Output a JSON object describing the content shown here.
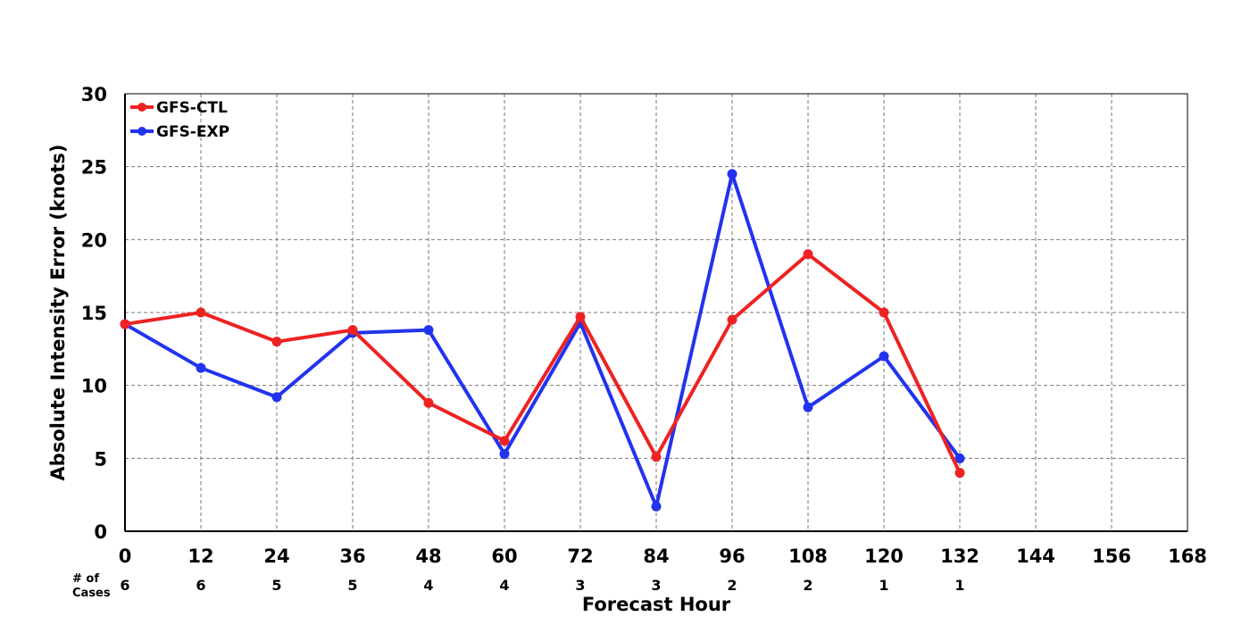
{
  "chart_data": {
    "type": "line",
    "title": "",
    "xlabel": "Forecast Hour",
    "ylabel": "Absolute Intensity Error (knots)",
    "x": [
      0,
      12,
      24,
      36,
      48,
      60,
      72,
      84,
      96,
      108,
      120,
      132
    ],
    "xlim": [
      0,
      168
    ],
    "ylim": [
      0,
      30
    ],
    "xticks": [
      "0",
      "12",
      "24",
      "36",
      "48",
      "60",
      "72",
      "84",
      "96",
      "108",
      "120",
      "132",
      "144",
      "156",
      "168"
    ],
    "yticks": [
      "0",
      "5",
      "10",
      "15",
      "20",
      "25",
      "30"
    ],
    "grid": true,
    "legend_position": "top-left",
    "cases_label_line1": "# of",
    "cases_label_line2": "Cases",
    "cases": [
      "6",
      "6",
      "5",
      "5",
      "4",
      "4",
      "3",
      "3",
      "2",
      "2",
      "1",
      "1"
    ],
    "series": [
      {
        "name": "GFS-CTL",
        "color": "#ee2222",
        "values": [
          14.2,
          15.0,
          13.0,
          13.8,
          8.8,
          6.2,
          14.7,
          5.1,
          14.5,
          19.0,
          15.0,
          4.0
        ]
      },
      {
        "name": "GFS-EXP",
        "color": "#2233ee",
        "values": [
          14.2,
          11.2,
          9.2,
          13.6,
          13.8,
          5.3,
          14.3,
          1.7,
          24.5,
          8.5,
          12.0,
          5.0
        ]
      }
    ]
  }
}
